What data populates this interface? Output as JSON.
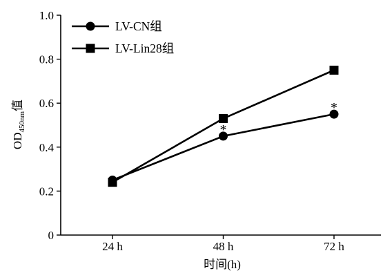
{
  "chart_data": {
    "type": "line",
    "categories": [
      "24 h",
      "48 h",
      "72 h"
    ],
    "series": [
      {
        "name": "LV-CN组",
        "marker": "circle",
        "values": [
          0.25,
          0.45,
          0.55
        ]
      },
      {
        "name": "LV-Lin28组",
        "marker": "square",
        "values": [
          0.24,
          0.53,
          0.75
        ]
      }
    ],
    "annotations": [
      {
        "series": 0,
        "index": 1,
        "text": "*"
      },
      {
        "series": 0,
        "index": 2,
        "text": "*"
      }
    ],
    "xlabel": "时间(h)",
    "ylabel": {
      "base": "OD",
      "subscript": "450nm",
      "suffix": "值"
    },
    "ylim": [
      0,
      1.0
    ],
    "yticks": [
      0,
      0.2,
      0.4,
      0.6,
      0.8,
      1.0
    ],
    "ytick_labels": [
      "0",
      "0.2",
      "0.4",
      "0.6",
      "0.8",
      "1.0"
    ],
    "grid": false,
    "legend": "top-left",
    "colors": {
      "line": "#000000"
    }
  }
}
